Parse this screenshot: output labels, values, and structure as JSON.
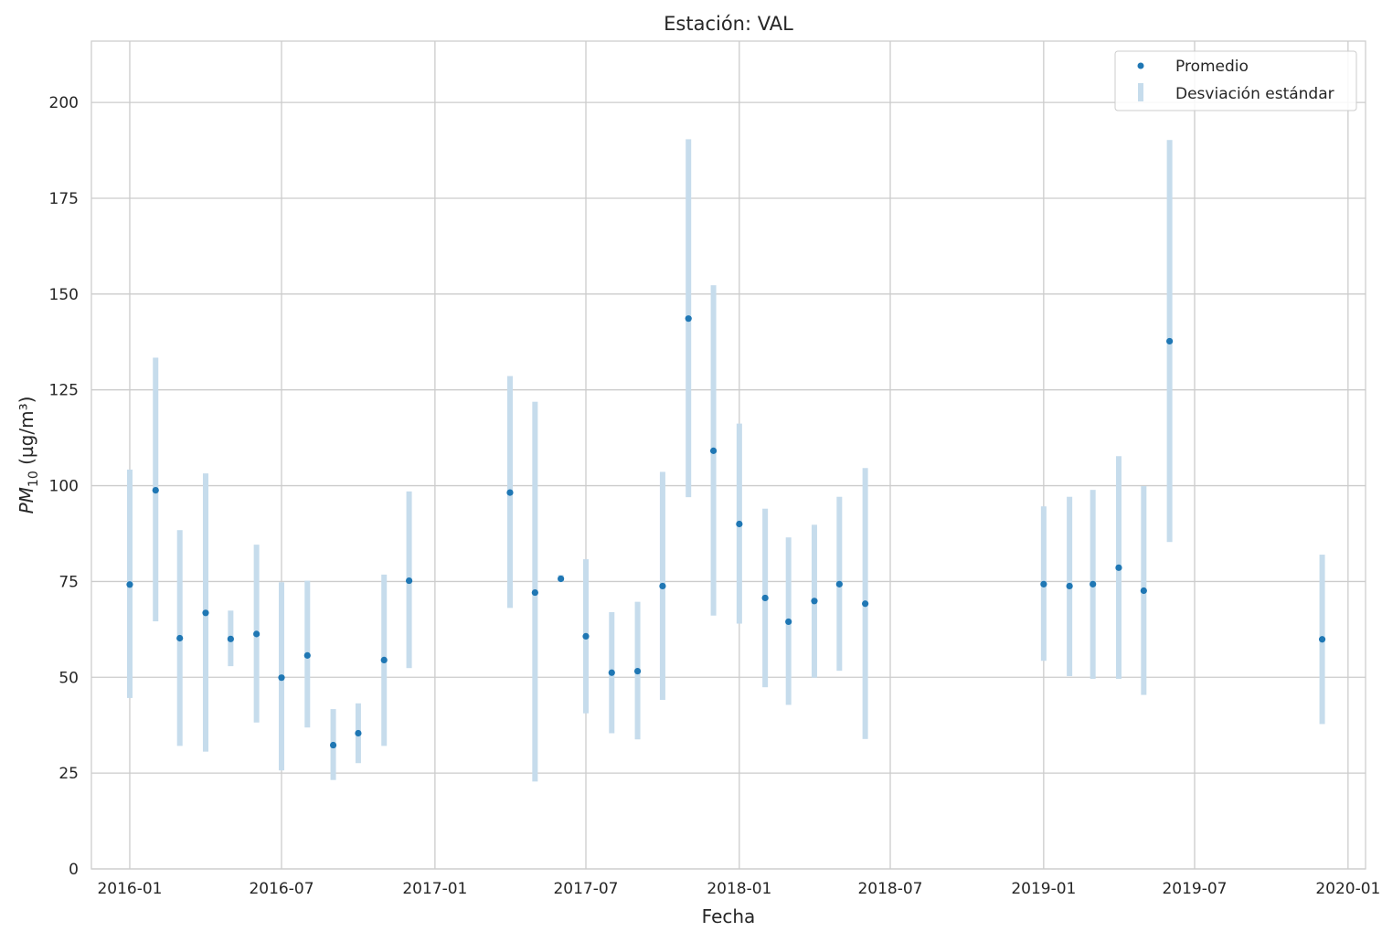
{
  "chart_data": {
    "type": "scatter",
    "title": "Estación: VAL",
    "xlabel": "Fecha",
    "ylabel": {
      "main": "PM",
      "sub": "10",
      "rest": " (µg/m³)"
    },
    "ylim": [
      0,
      216
    ],
    "yticks": [
      0,
      25,
      50,
      75,
      100,
      125,
      150,
      175,
      200
    ],
    "xlim": [
      "2015-11-16",
      "2020-01-22"
    ],
    "xticks": [
      {
        "date": "2016-01-01",
        "label": "2016-01"
      },
      {
        "date": "2016-07-01",
        "label": "2016-07"
      },
      {
        "date": "2017-01-01",
        "label": "2017-01"
      },
      {
        "date": "2017-07-01",
        "label": "2017-07"
      },
      {
        "date": "2018-01-01",
        "label": "2018-01"
      },
      {
        "date": "2018-07-01",
        "label": "2018-07"
      },
      {
        "date": "2019-01-01",
        "label": "2019-01"
      },
      {
        "date": "2019-07-01",
        "label": "2019-07"
      },
      {
        "date": "2020-01-01",
        "label": "2020-01"
      }
    ],
    "grid": true,
    "legend": {
      "position": "top-right",
      "entries": [
        {
          "label": "Promedio",
          "kind": "point"
        },
        {
          "label": "Desviación estándar",
          "kind": "bar"
        }
      ]
    },
    "colors": {
      "point": "#1f77b4",
      "bar": "#c6dcec",
      "grid": "#cccccc"
    },
    "series": [
      {
        "name": "Promedio",
        "points": [
          {
            "date": "2016-01-01",
            "mean": 74.2,
            "low": 44.6,
            "high": 104.2
          },
          {
            "date": "2016-02-01",
            "mean": 98.8,
            "low": 64.6,
            "high": 133.4
          },
          {
            "date": "2016-03-01",
            "mean": 60.2,
            "low": 32.1,
            "high": 88.4
          },
          {
            "date": "2016-04-01",
            "mean": 66.8,
            "low": 30.6,
            "high": 103.2
          },
          {
            "date": "2016-05-01",
            "mean": 60.0,
            "low": 52.9,
            "high": 67.4
          },
          {
            "date": "2016-06-01",
            "mean": 61.3,
            "low": 38.2,
            "high": 84.6
          },
          {
            "date": "2016-07-01",
            "mean": 49.9,
            "low": 25.7,
            "high": 74.8
          },
          {
            "date": "2016-08-01",
            "mean": 55.7,
            "low": 36.9,
            "high": 75.2
          },
          {
            "date": "2016-09-01",
            "mean": 32.3,
            "low": 23.2,
            "high": 41.7
          },
          {
            "date": "2016-10-01",
            "mean": 35.4,
            "low": 27.6,
            "high": 43.2
          },
          {
            "date": "2016-11-01",
            "mean": 54.5,
            "low": 32.1,
            "high": 76.8
          },
          {
            "date": "2016-12-01",
            "mean": 75.2,
            "low": 52.4,
            "high": 98.5
          },
          {
            "date": "2017-04-01",
            "mean": 98.2,
            "low": 68.1,
            "high": 128.6
          },
          {
            "date": "2017-05-01",
            "mean": 72.1,
            "low": 22.8,
            "high": 121.9
          },
          {
            "date": "2017-06-01",
            "mean": 75.7,
            "low": 74.9,
            "high": 76.7
          },
          {
            "date": "2017-07-01",
            "mean": 60.7,
            "low": 40.6,
            "high": 80.8
          },
          {
            "date": "2017-08-01",
            "mean": 51.2,
            "low": 35.4,
            "high": 67.0
          },
          {
            "date": "2017-09-01",
            "mean": 51.6,
            "low": 33.8,
            "high": 69.7
          },
          {
            "date": "2017-10-01",
            "mean": 73.8,
            "low": 44.1,
            "high": 103.6
          },
          {
            "date": "2017-11-01",
            "mean": 143.6,
            "low": 97.0,
            "high": 190.4
          },
          {
            "date": "2017-12-01",
            "mean": 109.1,
            "low": 66.1,
            "high": 152.3
          },
          {
            "date": "2018-01-01",
            "mean": 90.0,
            "low": 64.0,
            "high": 116.2
          },
          {
            "date": "2018-02-01",
            "mean": 70.7,
            "low": 47.4,
            "high": 94.0
          },
          {
            "date": "2018-03-01",
            "mean": 64.5,
            "low": 42.8,
            "high": 86.5
          },
          {
            "date": "2018-04-01",
            "mean": 69.9,
            "low": 49.9,
            "high": 89.8
          },
          {
            "date": "2018-05-01",
            "mean": 74.3,
            "low": 51.7,
            "high": 97.1
          },
          {
            "date": "2018-06-01",
            "mean": 69.2,
            "low": 33.9,
            "high": 104.6
          },
          {
            "date": "2019-01-01",
            "mean": 74.3,
            "low": 54.3,
            "high": 94.6
          },
          {
            "date": "2019-02-01",
            "mean": 73.8,
            "low": 50.3,
            "high": 97.1
          },
          {
            "date": "2019-03-01",
            "mean": 74.3,
            "low": 49.6,
            "high": 98.9
          },
          {
            "date": "2019-04-01",
            "mean": 78.6,
            "low": 49.6,
            "high": 107.7
          },
          {
            "date": "2019-05-01",
            "mean": 72.6,
            "low": 45.4,
            "high": 99.9
          },
          {
            "date": "2019-06-01",
            "mean": 137.7,
            "low": 85.3,
            "high": 190.2
          },
          {
            "date": "2019-12-01",
            "mean": 59.9,
            "low": 37.8,
            "high": 82.0
          }
        ]
      }
    ]
  }
}
